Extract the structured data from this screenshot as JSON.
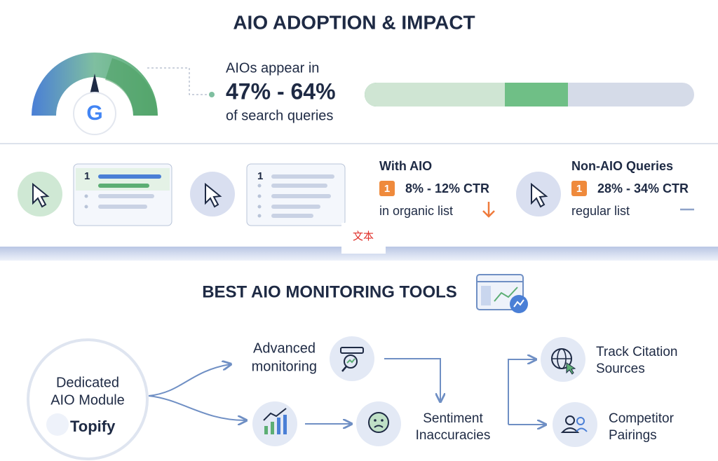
{
  "header": {
    "title": "AIO ADOPTION & IMPACT"
  },
  "adoption": {
    "logo": "G",
    "lead": "AIOs appear in",
    "range": "47% - 64%",
    "tail": "of search queries"
  },
  "cards": [
    {
      "rank": "1"
    },
    {
      "rank": "1"
    }
  ],
  "ctr": [
    {
      "title": "With AIO",
      "badge": "1",
      "range": "8% - 12% CTR",
      "note": "in organic list"
    },
    {
      "title": "Non-AIO Queries",
      "badge": "1",
      "range": "28% - 34% CTR",
      "note": "regular list"
    }
  ],
  "overlay_label": "文本",
  "tools": {
    "title": "BEST AIO MONITORING TOOLS",
    "hub": {
      "lines": [
        "Dedicated",
        "AIO Module"
      ],
      "brand": "Topify"
    },
    "items": [
      {
        "lines": [
          "Advanced",
          "monitoring"
        ]
      },
      {
        "lines": [
          "Sentiment",
          "Inaccuracies"
        ]
      },
      {
        "lines": [
          "Track Citation",
          "Sources"
        ]
      },
      {
        "lines": [
          "Competitor",
          "Pairings"
        ]
      }
    ]
  }
}
